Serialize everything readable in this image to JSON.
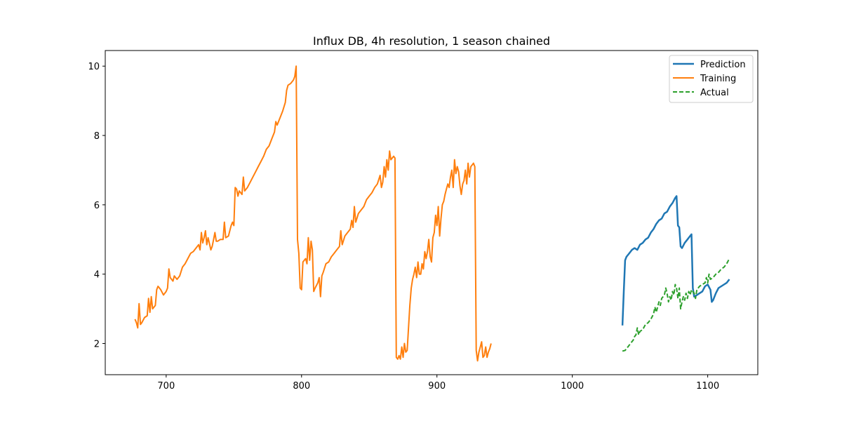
{
  "chart_data": {
    "type": "line",
    "title": "Influx DB, 4h resolution, 1 season chained",
    "xlabel": "",
    "ylabel": "",
    "xlim": [
      655,
      1137
    ],
    "ylim": [
      1.1,
      10.45
    ],
    "xticks": [
      700,
      800,
      900,
      1000,
      1100
    ],
    "yticks": [
      2,
      4,
      6,
      8,
      10
    ],
    "grid": false,
    "legend_position": "top-right",
    "series": [
      {
        "name": "Prediction",
        "color": "#1f77b4",
        "style": "solid",
        "points": [
          [
            1037,
            2.52
          ],
          [
            1038,
            3.5
          ],
          [
            1039,
            4.4
          ],
          [
            1040,
            4.5
          ],
          [
            1042,
            4.6
          ],
          [
            1044,
            4.7
          ],
          [
            1046,
            4.75
          ],
          [
            1048,
            4.7
          ],
          [
            1050,
            4.85
          ],
          [
            1052,
            4.9
          ],
          [
            1054,
            5.0
          ],
          [
            1056,
            5.05
          ],
          [
            1058,
            5.2
          ],
          [
            1060,
            5.3
          ],
          [
            1062,
            5.45
          ],
          [
            1064,
            5.55
          ],
          [
            1066,
            5.6
          ],
          [
            1068,
            5.75
          ],
          [
            1070,
            5.8
          ],
          [
            1072,
            5.95
          ],
          [
            1074,
            6.05
          ],
          [
            1076,
            6.2
          ],
          [
            1077,
            6.25
          ],
          [
            1078,
            5.4
          ],
          [
            1079,
            5.35
          ],
          [
            1080,
            4.8
          ],
          [
            1081,
            4.75
          ],
          [
            1083,
            4.9
          ],
          [
            1085,
            5.0
          ],
          [
            1087,
            5.1
          ],
          [
            1088,
            5.15
          ],
          [
            1089,
            3.6
          ],
          [
            1090,
            3.35
          ],
          [
            1092,
            3.4
          ],
          [
            1094,
            3.45
          ],
          [
            1096,
            3.5
          ],
          [
            1098,
            3.65
          ],
          [
            1100,
            3.7
          ],
          [
            1102,
            3.55
          ],
          [
            1103,
            3.2
          ],
          [
            1104,
            3.25
          ],
          [
            1106,
            3.45
          ],
          [
            1108,
            3.6
          ],
          [
            1110,
            3.65
          ],
          [
            1112,
            3.7
          ],
          [
            1114,
            3.75
          ],
          [
            1116,
            3.85
          ]
        ]
      },
      {
        "name": "Training",
        "color": "#ff7f0e",
        "style": "solid",
        "points": [
          [
            677,
            2.7
          ],
          [
            678,
            2.6
          ],
          [
            679,
            2.45
          ],
          [
            680,
            3.15
          ],
          [
            681,
            2.55
          ],
          [
            682,
            2.6
          ],
          [
            684,
            2.75
          ],
          [
            686,
            2.8
          ],
          [
            687,
            3.3
          ],
          [
            688,
            2.9
          ],
          [
            689,
            3.35
          ],
          [
            690,
            3.0
          ],
          [
            692,
            3.1
          ],
          [
            693,
            3.55
          ],
          [
            694,
            3.65
          ],
          [
            696,
            3.55
          ],
          [
            698,
            3.4
          ],
          [
            700,
            3.5
          ],
          [
            701,
            3.6
          ],
          [
            702,
            4.15
          ],
          [
            703,
            3.9
          ],
          [
            705,
            3.8
          ],
          [
            706,
            3.95
          ],
          [
            708,
            3.85
          ],
          [
            710,
            3.95
          ],
          [
            712,
            4.2
          ],
          [
            714,
            4.3
          ],
          [
            716,
            4.45
          ],
          [
            718,
            4.6
          ],
          [
            720,
            4.65
          ],
          [
            722,
            4.75
          ],
          [
            724,
            4.85
          ],
          [
            725,
            4.7
          ],
          [
            726,
            5.2
          ],
          [
            727,
            4.9
          ],
          [
            728,
            5.05
          ],
          [
            729,
            5.25
          ],
          [
            730,
            4.85
          ],
          [
            731,
            5.05
          ],
          [
            733,
            4.7
          ],
          [
            734,
            4.8
          ],
          [
            735,
            5.0
          ],
          [
            736,
            5.2
          ],
          [
            737,
            4.95
          ],
          [
            738,
            4.95
          ],
          [
            740,
            5.0
          ],
          [
            742,
            5.0
          ],
          [
            743,
            5.5
          ],
          [
            744,
            5.05
          ],
          [
            746,
            5.1
          ],
          [
            748,
            5.4
          ],
          [
            749,
            5.5
          ],
          [
            750,
            5.4
          ],
          [
            751,
            6.5
          ],
          [
            752,
            6.45
          ],
          [
            753,
            6.25
          ],
          [
            754,
            6.4
          ],
          [
            756,
            6.3
          ],
          [
            757,
            6.8
          ],
          [
            758,
            6.4
          ],
          [
            760,
            6.5
          ],
          [
            762,
            6.65
          ],
          [
            764,
            6.8
          ],
          [
            766,
            6.95
          ],
          [
            768,
            7.1
          ],
          [
            770,
            7.25
          ],
          [
            772,
            7.4
          ],
          [
            774,
            7.6
          ],
          [
            776,
            7.7
          ],
          [
            778,
            7.9
          ],
          [
            780,
            8.1
          ],
          [
            781,
            8.4
          ],
          [
            782,
            8.3
          ],
          [
            784,
            8.5
          ],
          [
            786,
            8.7
          ],
          [
            788,
            8.95
          ],
          [
            789,
            9.3
          ],
          [
            790,
            9.45
          ],
          [
            792,
            9.5
          ],
          [
            794,
            9.6
          ],
          [
            795,
            9.7
          ],
          [
            796,
            10.0
          ],
          [
            797,
            5.0
          ],
          [
            798,
            4.6
          ],
          [
            799,
            3.6
          ],
          [
            800,
            3.55
          ],
          [
            801,
            4.35
          ],
          [
            803,
            4.45
          ],
          [
            804,
            4.3
          ],
          [
            805,
            5.05
          ],
          [
            806,
            4.4
          ],
          [
            807,
            4.95
          ],
          [
            808,
            4.7
          ],
          [
            809,
            3.5
          ],
          [
            810,
            3.6
          ],
          [
            812,
            3.75
          ],
          [
            813,
            3.9
          ],
          [
            814,
            3.35
          ],
          [
            815,
            3.95
          ],
          [
            816,
            4.05
          ],
          [
            818,
            4.3
          ],
          [
            820,
            4.35
          ],
          [
            822,
            4.5
          ],
          [
            824,
            4.6
          ],
          [
            826,
            4.7
          ],
          [
            828,
            4.8
          ],
          [
            829,
            5.25
          ],
          [
            830,
            4.85
          ],
          [
            832,
            5.1
          ],
          [
            834,
            5.2
          ],
          [
            836,
            5.3
          ],
          [
            837,
            5.55
          ],
          [
            838,
            5.35
          ],
          [
            839,
            5.95
          ],
          [
            840,
            5.5
          ],
          [
            842,
            5.75
          ],
          [
            844,
            5.85
          ],
          [
            846,
            5.95
          ],
          [
            848,
            6.15
          ],
          [
            850,
            6.25
          ],
          [
            852,
            6.35
          ],
          [
            854,
            6.5
          ],
          [
            856,
            6.6
          ],
          [
            858,
            6.85
          ],
          [
            859,
            6.5
          ],
          [
            860,
            6.65
          ],
          [
            861,
            7.1
          ],
          [
            862,
            6.8
          ],
          [
            863,
            7.3
          ],
          [
            864,
            7.0
          ],
          [
            865,
            7.55
          ],
          [
            866,
            7.3
          ],
          [
            868,
            7.4
          ],
          [
            869,
            7.35
          ],
          [
            870,
            1.6
          ],
          [
            871,
            1.55
          ],
          [
            872,
            1.65
          ],
          [
            873,
            1.55
          ],
          [
            874,
            1.9
          ],
          [
            875,
            1.6
          ],
          [
            876,
            2.0
          ],
          [
            877,
            1.75
          ],
          [
            878,
            1.8
          ],
          [
            880,
            3.1
          ],
          [
            881,
            3.6
          ],
          [
            882,
            3.85
          ],
          [
            883,
            4.0
          ],
          [
            884,
            4.2
          ],
          [
            885,
            3.9
          ],
          [
            886,
            4.35
          ],
          [
            887,
            4.0
          ],
          [
            888,
            4.0
          ],
          [
            889,
            4.3
          ],
          [
            890,
            4.15
          ],
          [
            891,
            4.65
          ],
          [
            892,
            4.45
          ],
          [
            893,
            4.65
          ],
          [
            894,
            5.0
          ],
          [
            895,
            4.5
          ],
          [
            896,
            4.35
          ],
          [
            897,
            5.05
          ],
          [
            898,
            5.2
          ],
          [
            899,
            5.7
          ],
          [
            900,
            5.4
          ],
          [
            901,
            5.95
          ],
          [
            902,
            5.1
          ],
          [
            903,
            5.6
          ],
          [
            904,
            6.0
          ],
          [
            905,
            6.1
          ],
          [
            906,
            6.3
          ],
          [
            907,
            6.45
          ],
          [
            908,
            6.6
          ],
          [
            909,
            6.5
          ],
          [
            910,
            6.8
          ],
          [
            911,
            7.0
          ],
          [
            912,
            6.5
          ],
          [
            913,
            7.3
          ],
          [
            914,
            6.9
          ],
          [
            915,
            7.1
          ],
          [
            916,
            6.95
          ],
          [
            917,
            6.55
          ],
          [
            918,
            6.3
          ],
          [
            919,
            6.6
          ],
          [
            920,
            6.7
          ],
          [
            921,
            7.0
          ],
          [
            922,
            6.6
          ],
          [
            923,
            7.2
          ],
          [
            924,
            6.8
          ],
          [
            925,
            7.1
          ],
          [
            926,
            7.15
          ],
          [
            927,
            7.2
          ],
          [
            928,
            7.1
          ],
          [
            929,
            1.8
          ],
          [
            930,
            1.5
          ],
          [
            931,
            1.75
          ],
          [
            932,
            1.9
          ],
          [
            933,
            2.05
          ],
          [
            934,
            1.6
          ],
          [
            935,
            1.65
          ],
          [
            936,
            1.9
          ],
          [
            937,
            1.6
          ],
          [
            938,
            1.75
          ],
          [
            939,
            1.85
          ],
          [
            940,
            2.0
          ]
        ]
      },
      {
        "name": "Actual",
        "color": "#2ca02c",
        "style": "dashed",
        "points": [
          [
            1037,
            1.78
          ],
          [
            1039,
            1.8
          ],
          [
            1041,
            1.9
          ],
          [
            1043,
            2.0
          ],
          [
            1045,
            2.1
          ],
          [
            1046,
            2.2
          ],
          [
            1047,
            2.25
          ],
          [
            1048,
            2.45
          ],
          [
            1049,
            2.25
          ],
          [
            1050,
            2.35
          ],
          [
            1052,
            2.4
          ],
          [
            1054,
            2.55
          ],
          [
            1056,
            2.6
          ],
          [
            1058,
            2.7
          ],
          [
            1060,
            2.85
          ],
          [
            1061,
            3.05
          ],
          [
            1062,
            2.9
          ],
          [
            1063,
            3.05
          ],
          [
            1064,
            3.2
          ],
          [
            1065,
            3.1
          ],
          [
            1066,
            3.3
          ],
          [
            1068,
            3.4
          ],
          [
            1069,
            3.6
          ],
          [
            1070,
            3.45
          ],
          [
            1071,
            3.2
          ],
          [
            1072,
            3.35
          ],
          [
            1073,
            3.25
          ],
          [
            1074,
            3.5
          ],
          [
            1075,
            3.4
          ],
          [
            1076,
            3.7
          ],
          [
            1077,
            3.6
          ],
          [
            1078,
            3.3
          ],
          [
            1079,
            3.6
          ],
          [
            1080,
            3.0
          ],
          [
            1081,
            3.2
          ],
          [
            1082,
            3.35
          ],
          [
            1083,
            3.25
          ],
          [
            1084,
            3.45
          ],
          [
            1085,
            3.3
          ],
          [
            1086,
            3.5
          ],
          [
            1087,
            3.4
          ],
          [
            1088,
            3.55
          ],
          [
            1090,
            3.45
          ],
          [
            1091,
            3.3
          ],
          [
            1092,
            3.55
          ],
          [
            1094,
            3.65
          ],
          [
            1096,
            3.7
          ],
          [
            1098,
            3.75
          ],
          [
            1099,
            3.9
          ],
          [
            1100,
            3.75
          ],
          [
            1101,
            4.0
          ],
          [
            1102,
            3.85
          ],
          [
            1104,
            3.9
          ],
          [
            1106,
            4.0
          ],
          [
            1108,
            4.05
          ],
          [
            1110,
            4.15
          ],
          [
            1112,
            4.2
          ],
          [
            1114,
            4.3
          ],
          [
            1116,
            4.45
          ]
        ]
      }
    ]
  }
}
